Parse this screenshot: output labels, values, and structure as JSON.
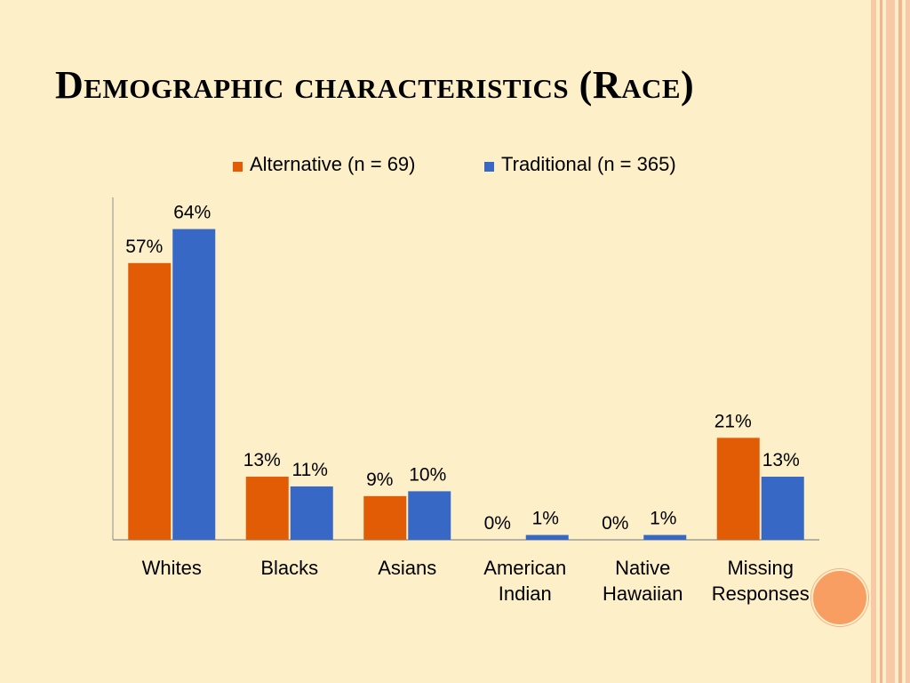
{
  "title": "Demographic characteristics (Race)",
  "colors": {
    "alternative": "#e25c05",
    "traditional": "#3768c5"
  },
  "chart_data": {
    "type": "bar",
    "categories": [
      [
        "Whites"
      ],
      [
        "Blacks"
      ],
      [
        "Asians"
      ],
      [
        "American",
        "Indian"
      ],
      [
        "Native",
        "Hawaiian"
      ],
      [
        "Missing",
        "Responses"
      ]
    ],
    "series": [
      {
        "name": "Alternative (n = 69)",
        "values": [
          57,
          13,
          9,
          0,
          0,
          21
        ],
        "labels": [
          "57%",
          "13%",
          "9%",
          "0%",
          "0%",
          "21%"
        ]
      },
      {
        "name": "Traditional (n = 365)",
        "values": [
          64,
          11,
          10,
          1,
          1,
          13
        ],
        "labels": [
          "64%",
          "11%",
          "10%",
          "1%",
          "1%",
          "13%"
        ]
      }
    ],
    "ylim": [
      0,
      70
    ],
    "legend": "top",
    "grid": false
  }
}
